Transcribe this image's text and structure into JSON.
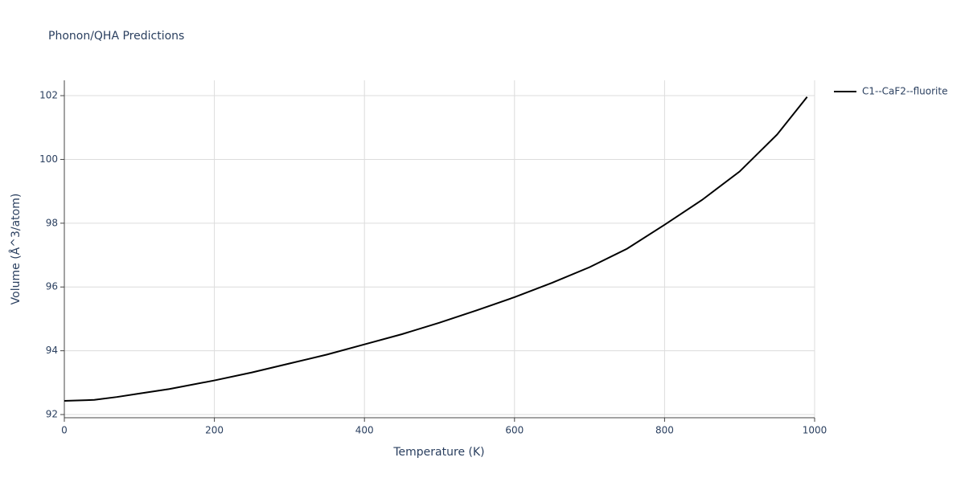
{
  "chart_data": {
    "type": "line",
    "title": "Phonon/QHA Predictions",
    "x_label": "Temperature (K)",
    "y_label": "Volume (Å^3/atom)",
    "x": [
      0,
      30,
      40,
      70,
      100,
      140,
      200,
      250,
      300,
      350,
      400,
      450,
      500,
      550,
      600,
      650,
      700,
      750,
      800,
      850,
      900,
      950,
      990
    ],
    "series": [
      {
        "name": "C1--CaF2--fluorite",
        "color": "#000000",
        "values": [
          92.43,
          92.45,
          92.46,
          92.55,
          92.66,
          92.8,
          93.07,
          93.32,
          93.6,
          93.88,
          94.2,
          94.52,
          94.88,
          95.27,
          95.68,
          96.13,
          96.62,
          97.2,
          97.95,
          98.73,
          99.62,
          100.78,
          101.96
        ]
      }
    ],
    "xlim": [
      0,
      1000
    ],
    "xticks": [
      0,
      200,
      400,
      600,
      800,
      1000
    ],
    "ylim": [
      91.9,
      102.48
    ],
    "yticks": [
      92,
      94,
      96,
      98,
      100,
      102
    ],
    "grid": true,
    "legend": "right"
  }
}
